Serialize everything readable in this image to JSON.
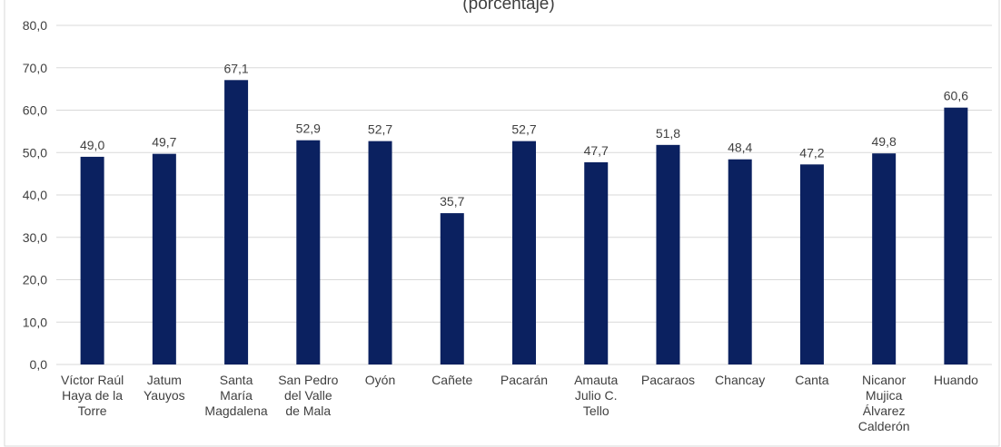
{
  "chart_data": {
    "type": "bar",
    "subtitle": "(porcentaje)",
    "categories": [
      "Víctor Raúl\nHaya de la\nTorre",
      "Jatum\nYauyos",
      "Santa\nMaría\nMagdalena",
      "San Pedro\ndel Valle\nde Mala",
      "Oyón",
      "Cañete",
      "Pacarán",
      "Amauta\nJulio C.\nTello",
      "Pacaraos",
      "Chancay",
      "Canta",
      "Nicanor\nMujica\nÁlvarez\nCalderón",
      "Huando"
    ],
    "values": [
      49.0,
      49.7,
      67.1,
      52.9,
      52.7,
      35.7,
      52.7,
      47.7,
      51.8,
      48.4,
      47.2,
      49.8,
      60.6
    ],
    "value_labels": [
      "49,0",
      "49,7",
      "67,1",
      "52,9",
      "52,7",
      "35,7",
      "52,7",
      "47,7",
      "51,8",
      "48,4",
      "47,2",
      "49,8",
      "60,6"
    ],
    "color": "#0b2160",
    "ylim": [
      0,
      80
    ],
    "yticks": [
      {
        "value": 0,
        "label": "0,0"
      },
      {
        "value": 10,
        "label": "10,0"
      },
      {
        "value": 20,
        "label": "20,0"
      },
      {
        "value": 30,
        "label": "30,0"
      },
      {
        "value": 40,
        "label": "40,0"
      },
      {
        "value": 50,
        "label": "50,0"
      },
      {
        "value": 60,
        "label": "60,0"
      },
      {
        "value": 70,
        "label": "70,0"
      },
      {
        "value": 80,
        "label": "80,0"
      }
    ],
    "grid": true
  }
}
